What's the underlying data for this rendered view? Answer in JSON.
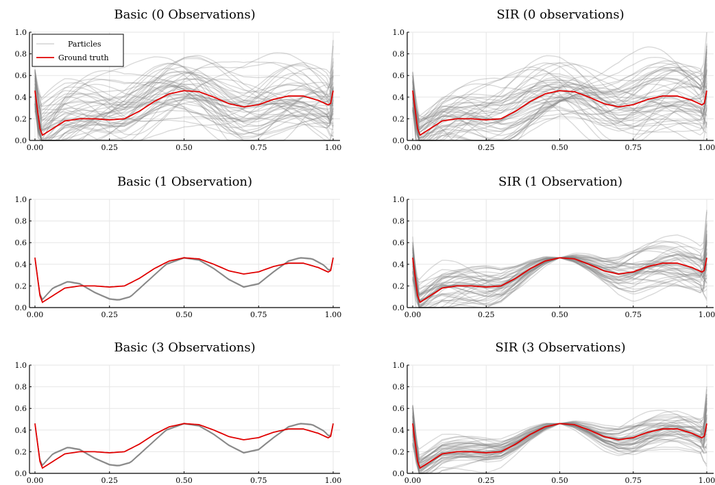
{
  "chart_data": [
    {
      "type": "line",
      "title": "Basic (0 Observations)",
      "xlabel": "",
      "ylabel": "",
      "xlim": [
        0,
        1
      ],
      "ylim": [
        0,
        1
      ],
      "xticks": [
        "0.00",
        "0.25",
        "0.50",
        "0.75",
        "1.00"
      ],
      "yticks": [
        "0.0",
        "0.2",
        "0.4",
        "0.6",
        "0.8",
        "1.0"
      ],
      "grid": true,
      "legend": {
        "position": "top-left",
        "entries": [
          "Particles",
          "Ground truth"
        ]
      },
      "particle_spread": 0.35,
      "particle_count": 50,
      "series": [
        {
          "name": "Ground truth",
          "x": [
            0,
            0.02,
            0.1,
            0.15,
            0.2,
            0.25,
            0.3,
            0.35,
            0.4,
            0.45,
            0.5,
            0.55,
            0.6,
            0.65,
            0.7,
            0.75,
            0.8,
            0.85,
            0.9,
            0.95,
            0.99,
            1.0
          ],
          "values": [
            0.46,
            0.04,
            0.18,
            0.2,
            0.2,
            0.19,
            0.2,
            0.27,
            0.36,
            0.43,
            0.46,
            0.45,
            0.4,
            0.34,
            0.31,
            0.33,
            0.38,
            0.41,
            0.41,
            0.37,
            0.32,
            0.46
          ]
        }
      ]
    },
    {
      "type": "line",
      "title": "SIR (0 observations)",
      "xlabel": "",
      "ylabel": "",
      "xlim": [
        0,
        1
      ],
      "ylim": [
        0,
        1
      ],
      "xticks": [
        "0.00",
        "0.25",
        "0.50",
        "0.75",
        "1.00"
      ],
      "yticks": [
        "0.0",
        "0.2",
        "0.4",
        "0.6",
        "0.8",
        "1.0"
      ],
      "grid": true,
      "particle_spread": 0.32,
      "particle_count": 50,
      "series": [
        {
          "name": "Ground truth",
          "x": [
            0,
            0.02,
            0.1,
            0.15,
            0.2,
            0.25,
            0.3,
            0.35,
            0.4,
            0.45,
            0.5,
            0.55,
            0.6,
            0.65,
            0.7,
            0.75,
            0.8,
            0.85,
            0.9,
            0.95,
            0.99,
            1.0
          ],
          "values": [
            0.46,
            0.04,
            0.18,
            0.2,
            0.2,
            0.19,
            0.2,
            0.27,
            0.36,
            0.43,
            0.46,
            0.45,
            0.4,
            0.34,
            0.31,
            0.33,
            0.38,
            0.41,
            0.41,
            0.37,
            0.32,
            0.46
          ]
        }
      ]
    },
    {
      "type": "line",
      "title": "Basic (1 Observation)",
      "xlabel": "",
      "ylabel": "",
      "xlim": [
        0,
        1
      ],
      "ylim": [
        0,
        1
      ],
      "xticks": [
        "0.00",
        "0.25",
        "0.50",
        "0.75",
        "1.00"
      ],
      "yticks": [
        "0.0",
        "0.2",
        "0.4",
        "0.6",
        "0.8",
        "1.0"
      ],
      "grid": true,
      "series": [
        {
          "name": "Particles",
          "x": [
            0,
            0.02,
            0.06,
            0.11,
            0.15,
            0.2,
            0.25,
            0.28,
            0.32,
            0.38,
            0.44,
            0.5,
            0.55,
            0.6,
            0.65,
            0.7,
            0.75,
            0.8,
            0.85,
            0.89,
            0.93,
            0.97,
            0.99,
            1.0
          ],
          "values": [
            0.46,
            0.06,
            0.18,
            0.24,
            0.22,
            0.14,
            0.08,
            0.07,
            0.1,
            0.25,
            0.4,
            0.46,
            0.44,
            0.36,
            0.26,
            0.19,
            0.22,
            0.33,
            0.43,
            0.46,
            0.45,
            0.39,
            0.33,
            0.46
          ]
        },
        {
          "name": "Ground truth",
          "x": [
            0,
            0.02,
            0.1,
            0.15,
            0.2,
            0.25,
            0.3,
            0.35,
            0.4,
            0.45,
            0.5,
            0.55,
            0.6,
            0.65,
            0.7,
            0.75,
            0.8,
            0.85,
            0.9,
            0.95,
            0.99,
            1.0
          ],
          "values": [
            0.46,
            0.04,
            0.18,
            0.2,
            0.2,
            0.19,
            0.2,
            0.27,
            0.36,
            0.43,
            0.46,
            0.45,
            0.4,
            0.34,
            0.31,
            0.33,
            0.38,
            0.41,
            0.41,
            0.37,
            0.32,
            0.46
          ]
        }
      ]
    },
    {
      "type": "line",
      "title": "SIR (1 Observation)",
      "xlabel": "",
      "ylabel": "",
      "xlim": [
        0,
        1
      ],
      "ylim": [
        0,
        1
      ],
      "xticks": [
        "0.00",
        "0.25",
        "0.50",
        "0.75",
        "1.00"
      ],
      "yticks": [
        "0.0",
        "0.2",
        "0.4",
        "0.6",
        "0.8",
        "1.0"
      ],
      "grid": true,
      "particle_spread": 0.22,
      "particle_count": 45,
      "particle_pinned_x": 0.5,
      "series": [
        {
          "name": "Ground truth",
          "x": [
            0,
            0.02,
            0.1,
            0.15,
            0.2,
            0.25,
            0.3,
            0.35,
            0.4,
            0.45,
            0.5,
            0.55,
            0.6,
            0.65,
            0.7,
            0.75,
            0.8,
            0.85,
            0.9,
            0.95,
            0.99,
            1.0
          ],
          "values": [
            0.46,
            0.04,
            0.18,
            0.2,
            0.2,
            0.19,
            0.2,
            0.27,
            0.36,
            0.43,
            0.46,
            0.45,
            0.4,
            0.34,
            0.31,
            0.33,
            0.38,
            0.41,
            0.41,
            0.37,
            0.32,
            0.46
          ]
        }
      ]
    },
    {
      "type": "line",
      "title": "Basic (3 Observations)",
      "xlabel": "",
      "ylabel": "",
      "xlim": [
        0,
        1
      ],
      "ylim": [
        0,
        1
      ],
      "xticks": [
        "0.00",
        "0.25",
        "0.50",
        "0.75",
        "1.00"
      ],
      "yticks": [
        "0.0",
        "0.2",
        "0.4",
        "0.6",
        "0.8",
        "1.0"
      ],
      "grid": true,
      "series": [
        {
          "name": "Particles",
          "x": [
            0,
            0.02,
            0.06,
            0.11,
            0.15,
            0.2,
            0.25,
            0.28,
            0.32,
            0.38,
            0.44,
            0.5,
            0.55,
            0.6,
            0.65,
            0.7,
            0.75,
            0.8,
            0.85,
            0.89,
            0.93,
            0.97,
            0.99,
            1.0
          ],
          "values": [
            0.46,
            0.06,
            0.18,
            0.24,
            0.22,
            0.14,
            0.08,
            0.07,
            0.1,
            0.25,
            0.4,
            0.46,
            0.44,
            0.36,
            0.26,
            0.19,
            0.22,
            0.33,
            0.43,
            0.46,
            0.45,
            0.39,
            0.33,
            0.46
          ]
        },
        {
          "name": "Ground truth",
          "x": [
            0,
            0.02,
            0.1,
            0.15,
            0.2,
            0.25,
            0.3,
            0.35,
            0.4,
            0.45,
            0.5,
            0.55,
            0.6,
            0.65,
            0.7,
            0.75,
            0.8,
            0.85,
            0.9,
            0.95,
            0.99,
            1.0
          ],
          "values": [
            0.46,
            0.04,
            0.18,
            0.2,
            0.2,
            0.19,
            0.2,
            0.27,
            0.36,
            0.43,
            0.46,
            0.45,
            0.4,
            0.34,
            0.31,
            0.33,
            0.38,
            0.41,
            0.41,
            0.37,
            0.32,
            0.46
          ]
        }
      ]
    },
    {
      "type": "line",
      "title": "SIR (3 Observations)",
      "xlabel": "",
      "ylabel": "",
      "xlim": [
        0,
        1
      ],
      "ylim": [
        0,
        1
      ],
      "xticks": [
        "0.00",
        "0.25",
        "0.50",
        "0.75",
        "1.00"
      ],
      "yticks": [
        "0.0",
        "0.2",
        "0.4",
        "0.6",
        "0.8",
        "1.0"
      ],
      "grid": true,
      "particle_spread": 0.16,
      "particle_count": 45,
      "particle_pinned_x": 0.5,
      "series": [
        {
          "name": "Ground truth",
          "x": [
            0,
            0.02,
            0.1,
            0.15,
            0.2,
            0.25,
            0.3,
            0.35,
            0.4,
            0.45,
            0.5,
            0.55,
            0.6,
            0.65,
            0.7,
            0.75,
            0.8,
            0.85,
            0.9,
            0.95,
            0.99,
            1.0
          ],
          "values": [
            0.46,
            0.04,
            0.18,
            0.2,
            0.2,
            0.19,
            0.2,
            0.27,
            0.36,
            0.43,
            0.46,
            0.45,
            0.4,
            0.34,
            0.31,
            0.33,
            0.38,
            0.41,
            0.41,
            0.37,
            0.32,
            0.46
          ]
        }
      ]
    }
  ],
  "colors": {
    "particles": "#808080",
    "ground_truth": "#e00000",
    "grid": "#e6e6e6",
    "axis": "#000000"
  }
}
